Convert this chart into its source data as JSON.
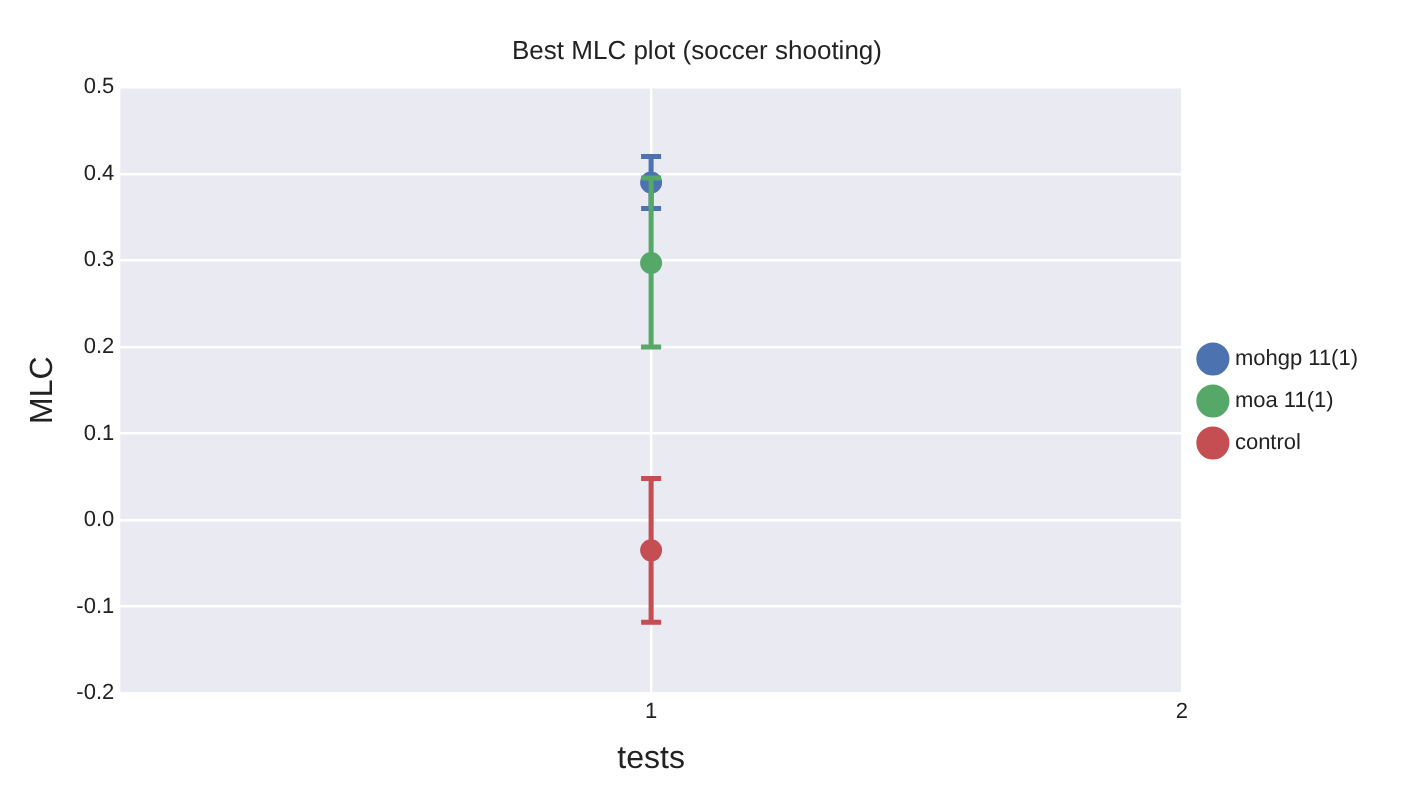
{
  "chart_data": {
    "type": "scatter",
    "title": "Best MLC plot (soccer shooting)",
    "xlabel": "tests",
    "ylabel": "MLC",
    "x": [
      1
    ],
    "series": [
      {
        "name": "mohgp 11(1)",
        "color": "#4c72b0",
        "values": [
          0.39
        ],
        "errors": [
          [
            0.36,
            0.42
          ]
        ]
      },
      {
        "name": "moa 11(1)",
        "color": "#55a868",
        "values": [
          0.297
        ],
        "errors": [
          [
            0.2,
            0.395
          ]
        ]
      },
      {
        "name": "control",
        "color": "#c44e52",
        "values": [
          -0.035
        ],
        "errors": [
          [
            -0.118,
            0.048
          ]
        ]
      }
    ],
    "xlim": [
      0,
      2
    ],
    "xticks": [
      1,
      2
    ],
    "ylim": [
      -0.2,
      0.5
    ],
    "yticks": [
      -0.2,
      -0.1,
      {
        "value": 0,
        "label": "0.0"
      },
      0.1,
      0.2,
      0.3,
      0.4,
      0.5
    ],
    "grid": true,
    "legend": "right",
    "marker": "circle"
  }
}
